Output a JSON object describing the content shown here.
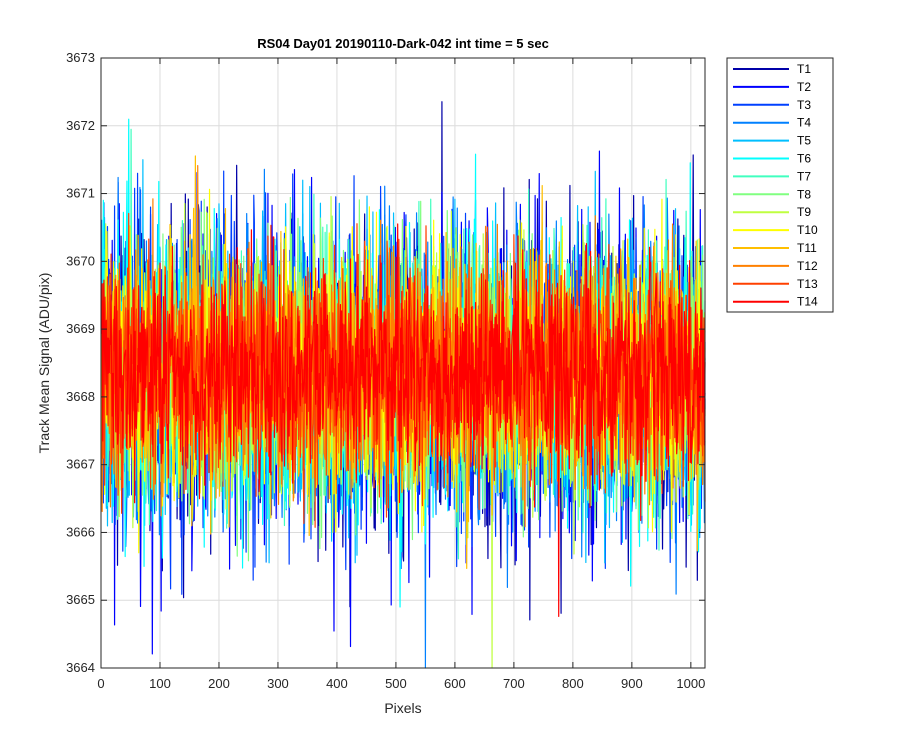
{
  "chart_data": {
    "type": "line",
    "title": "RS04 Day01 20190110-Dark-042 int time = 5 sec",
    "xlabel": "Pixels",
    "ylabel": "Track Mean Signal (ADU/pix)",
    "xlim": [
      0,
      1024
    ],
    "ylim": [
      3664,
      3673
    ],
    "xticks": [
      0,
      100,
      200,
      300,
      400,
      500,
      600,
      700,
      800,
      900,
      1000
    ],
    "yticks": [
      3664,
      3665,
      3666,
      3667,
      3668,
      3669,
      3670,
      3671,
      3672,
      3673
    ],
    "grid": true,
    "legend_position": "outside top-right",
    "n_points_per_series": 1024,
    "series_mean": 3668.3,
    "series_noise_std": 1.0,
    "series": [
      {
        "name": "T1",
        "color": "#0000a8"
      },
      {
        "name": "T2",
        "color": "#0000ff"
      },
      {
        "name": "T3",
        "color": "#0040ff"
      },
      {
        "name": "T4",
        "color": "#0080ff"
      },
      {
        "name": "T5",
        "color": "#00bfff"
      },
      {
        "name": "T6",
        "color": "#00ffff"
      },
      {
        "name": "T7",
        "color": "#40ffbf"
      },
      {
        "name": "T8",
        "color": "#80ff80"
      },
      {
        "name": "T9",
        "color": "#bfff40"
      },
      {
        "name": "T10",
        "color": "#ffff00"
      },
      {
        "name": "T11",
        "color": "#ffbf00"
      },
      {
        "name": "T12",
        "color": "#ff8000"
      },
      {
        "name": "T13",
        "color": "#ff4000"
      },
      {
        "name": "T14",
        "color": "#ff0000"
      }
    ]
  }
}
